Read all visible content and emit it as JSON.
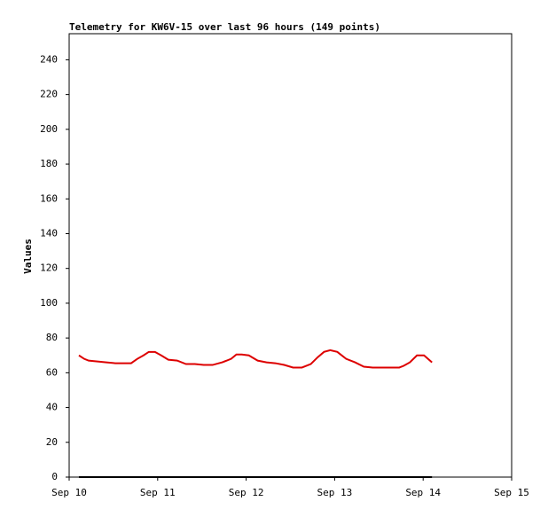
{
  "chart_data": {
    "type": "line",
    "title": "Telemetry for KW6V-15 over last 96 hours (149 points)",
    "y_label": "Values",
    "xlim": [
      0,
      5
    ],
    "xticks": [
      {
        "value": 0,
        "label": "Sep 10"
      },
      {
        "value": 1,
        "label": "Sep 11"
      },
      {
        "value": 2,
        "label": "Sep 12"
      },
      {
        "value": 3,
        "label": "Sep 13"
      },
      {
        "value": 4,
        "label": "Sep 14"
      },
      {
        "value": 5,
        "label": "Sep 15"
      }
    ],
    "ylim": [
      0,
      255
    ],
    "yticks": [
      0,
      20,
      40,
      60,
      80,
      100,
      120,
      140,
      160,
      180,
      200,
      220,
      240
    ],
    "series": [
      {
        "color": "#dd0000",
        "x": [
          0.11,
          0.17,
          0.22,
          0.32,
          0.42,
          0.52,
          0.62,
          0.7,
          0.77,
          0.84,
          0.9,
          0.97,
          1.04,
          1.12,
          1.22,
          1.32,
          1.42,
          1.52,
          1.62,
          1.73,
          1.83,
          1.89,
          1.95,
          2.03,
          2.13,
          2.23,
          2.33,
          2.43,
          2.53,
          2.63,
          2.73,
          2.81,
          2.88,
          2.95,
          3.03,
          3.13,
          3.23,
          3.33,
          3.43,
          3.53,
          3.63,
          3.73,
          3.78,
          3.85,
          3.93,
          4.01,
          4.1
        ],
        "values": [
          70,
          68,
          67,
          66.5,
          66,
          65.5,
          65.5,
          65.5,
          68,
          70,
          72,
          72,
          70,
          67.5,
          67,
          65,
          65,
          64.5,
          64.5,
          66,
          68,
          70.5,
          70.5,
          70,
          67,
          66,
          65.5,
          64.5,
          63,
          63,
          65,
          69,
          72,
          73,
          72,
          68,
          66,
          63.5,
          63,
          63,
          63,
          63,
          64,
          66,
          70,
          70,
          66
        ]
      },
      {
        "color": "#000000",
        "x": [
          0.11,
          4.1
        ],
        "values": [
          0,
          0
        ]
      }
    ]
  }
}
